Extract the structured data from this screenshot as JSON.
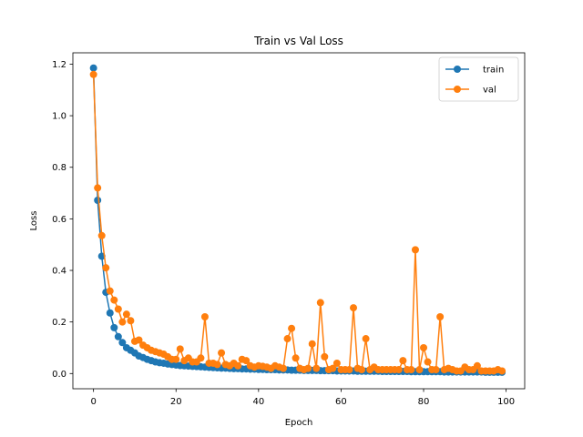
{
  "chart_data": {
    "type": "line",
    "title": "Train vs Val Loss",
    "xlabel": "Epoch",
    "ylabel": "Loss",
    "xlim": [
      -5,
      104.5
    ],
    "ylim": [
      -0.059,
      1.244
    ],
    "xticks": [
      0,
      20,
      40,
      60,
      80,
      100
    ],
    "xtick_labels": [
      "0",
      "20",
      "40",
      "60",
      "80",
      "100"
    ],
    "yticks": [
      0.0,
      0.2,
      0.4,
      0.6,
      0.8,
      1.0,
      1.2
    ],
    "ytick_labels": [
      "0.0",
      "0.2",
      "0.4",
      "0.6",
      "0.8",
      "1.0",
      "1.2"
    ],
    "grid": false,
    "legend_position": "top-right",
    "marker": "circle",
    "series": [
      {
        "name": "train",
        "color": "#1f77b4",
        "x": [
          0,
          1,
          2,
          3,
          4,
          5,
          6,
          7,
          8,
          9,
          10,
          11,
          12,
          13,
          14,
          15,
          16,
          17,
          18,
          19,
          20,
          21,
          22,
          23,
          24,
          25,
          26,
          27,
          28,
          29,
          30,
          31,
          32,
          33,
          34,
          35,
          36,
          37,
          38,
          39,
          40,
          41,
          42,
          43,
          44,
          45,
          46,
          47,
          48,
          49,
          50,
          51,
          52,
          53,
          54,
          55,
          56,
          57,
          58,
          59,
          60,
          61,
          62,
          63,
          64,
          65,
          66,
          67,
          68,
          69,
          70,
          71,
          72,
          73,
          74,
          75,
          76,
          77,
          78,
          79,
          80,
          81,
          82,
          83,
          84,
          85,
          86,
          87,
          88,
          89,
          90,
          91,
          92,
          93,
          94,
          95,
          96,
          97,
          98,
          99
        ],
        "values": [
          1.185,
          0.672,
          0.455,
          0.315,
          0.235,
          0.178,
          0.143,
          0.12,
          0.1,
          0.09,
          0.08,
          0.068,
          0.062,
          0.055,
          0.05,
          0.045,
          0.042,
          0.04,
          0.037,
          0.035,
          0.033,
          0.031,
          0.03,
          0.029,
          0.028,
          0.027,
          0.026,
          0.025,
          0.024,
          0.023,
          0.022,
          0.021,
          0.021,
          0.02,
          0.019,
          0.019,
          0.018,
          0.018,
          0.017,
          0.017,
          0.016,
          0.016,
          0.015,
          0.015,
          0.015,
          0.014,
          0.014,
          0.014,
          0.013,
          0.013,
          0.013,
          0.012,
          0.012,
          0.012,
          0.012,
          0.011,
          0.011,
          0.011,
          0.011,
          0.01,
          0.01,
          0.01,
          0.01,
          0.01,
          0.009,
          0.009,
          0.009,
          0.009,
          0.009,
          0.009,
          0.008,
          0.008,
          0.008,
          0.008,
          0.008,
          0.008,
          0.008,
          0.007,
          0.007,
          0.007,
          0.007,
          0.007,
          0.007,
          0.007,
          0.007,
          0.006,
          0.006,
          0.006,
          0.006,
          0.006,
          0.006,
          0.006,
          0.006,
          0.006,
          0.006,
          0.005,
          0.005,
          0.005,
          0.005,
          0.005
        ]
      },
      {
        "name": "val",
        "color": "#ff7f0e",
        "x": [
          0,
          1,
          2,
          3,
          4,
          5,
          6,
          7,
          8,
          9,
          10,
          11,
          12,
          13,
          14,
          15,
          16,
          17,
          18,
          19,
          20,
          21,
          22,
          23,
          24,
          25,
          26,
          27,
          28,
          29,
          30,
          31,
          32,
          33,
          34,
          35,
          36,
          37,
          38,
          39,
          40,
          41,
          42,
          43,
          44,
          45,
          46,
          47,
          48,
          49,
          50,
          51,
          52,
          53,
          54,
          55,
          56,
          57,
          58,
          59,
          60,
          61,
          62,
          63,
          64,
          65,
          66,
          67,
          68,
          69,
          70,
          71,
          72,
          73,
          74,
          75,
          76,
          77,
          78,
          79,
          80,
          81,
          82,
          83,
          84,
          85,
          86,
          87,
          88,
          89,
          90,
          91,
          92,
          93,
          94,
          95,
          96,
          97,
          98,
          99
        ],
        "values": [
          1.16,
          0.72,
          0.535,
          0.41,
          0.32,
          0.285,
          0.25,
          0.2,
          0.23,
          0.205,
          0.125,
          0.13,
          0.11,
          0.1,
          0.09,
          0.085,
          0.08,
          0.075,
          0.065,
          0.055,
          0.055,
          0.095,
          0.05,
          0.06,
          0.045,
          0.045,
          0.06,
          0.22,
          0.04,
          0.04,
          0.035,
          0.08,
          0.035,
          0.03,
          0.04,
          0.03,
          0.055,
          0.05,
          0.03,
          0.025,
          0.03,
          0.028,
          0.025,
          0.02,
          0.03,
          0.025,
          0.02,
          0.135,
          0.175,
          0.06,
          0.02,
          0.015,
          0.02,
          0.115,
          0.02,
          0.275,
          0.065,
          0.015,
          0.02,
          0.04,
          0.015,
          0.015,
          0.015,
          0.255,
          0.02,
          0.015,
          0.135,
          0.015,
          0.025,
          0.015,
          0.015,
          0.015,
          0.015,
          0.015,
          0.015,
          0.05,
          0.015,
          0.015,
          0.48,
          0.015,
          0.1,
          0.045,
          0.015,
          0.015,
          0.22,
          0.015,
          0.02,
          0.015,
          0.01,
          0.01,
          0.025,
          0.015,
          0.015,
          0.03,
          0.01,
          0.01,
          0.01,
          0.01,
          0.015,
          0.01
        ]
      }
    ]
  }
}
